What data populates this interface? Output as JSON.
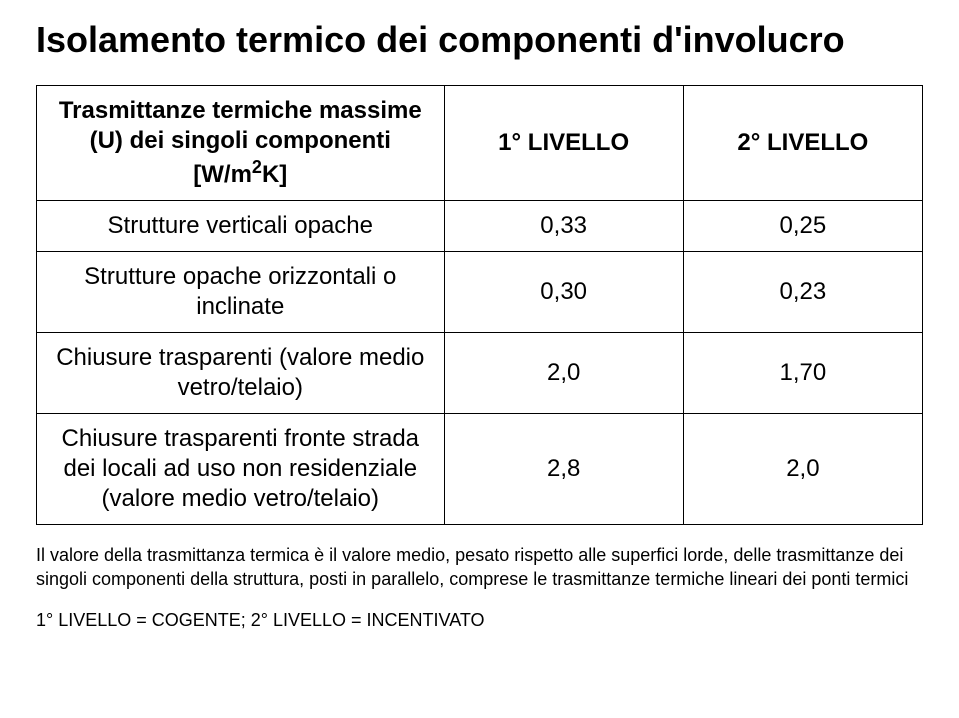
{
  "title": "Isolamento termico dei componenti d'involucro",
  "table": {
    "header_component_html": "Trasmittanze termiche massime (U) dei singoli componenti [W/m<sup>2</sup>K]",
    "level1": "1° LIVELLO",
    "level2": "2° LIVELLO",
    "rows": [
      {
        "label": "Strutture verticali opache",
        "v1": "0,33",
        "v2": "0,25"
      },
      {
        "label": "Strutture opache orizzontali o inclinate",
        "v1": "0,30",
        "v2": "0,23"
      },
      {
        "label": "Chiusure trasparenti (valore medio vetro/telaio)",
        "v1": "2,0",
        "v2": "1,70"
      },
      {
        "label": "Chiusure trasparenti fronte strada dei locali ad uso non residenziale (valore medio vetro/telaio)",
        "v1": "2,8",
        "v2": "2,0"
      }
    ]
  },
  "note": "Il valore della trasmittanza termica è il valore medio, pesato rispetto alle superfici lorde, delle trasmittanze dei singoli componenti della struttura, posti in parallelo, comprese le trasmittanze termiche lineari dei ponti termici",
  "legend": "1° LIVELLO = COGENTE; 2° LIVELLO = INCENTIVATO",
  "colors": {
    "text": "#000000",
    "background": "#ffffff",
    "border": "#000000"
  },
  "fonts": {
    "title_pt": 36,
    "table_pt": 24,
    "note_pt": 18
  }
}
